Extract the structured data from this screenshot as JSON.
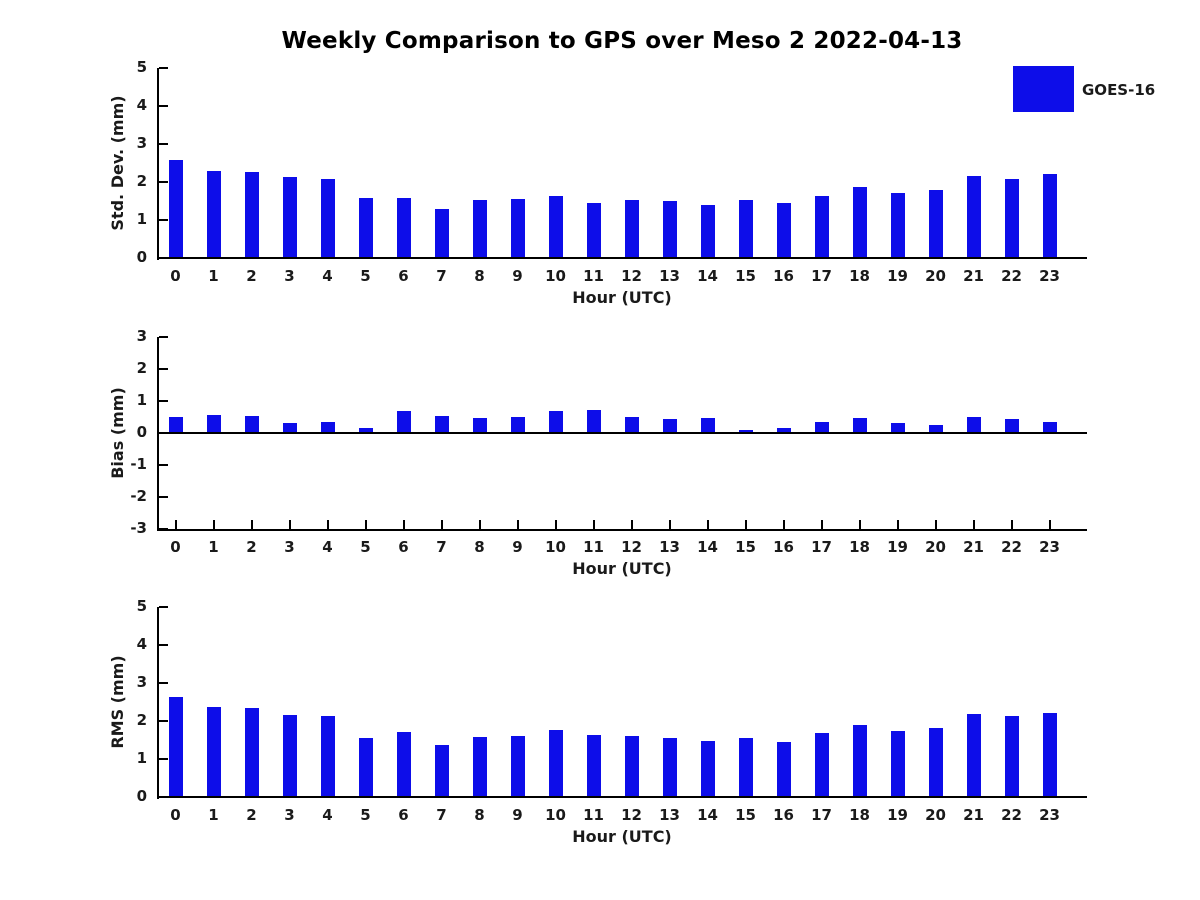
{
  "header": {
    "title": "Weekly Comparison to GPS over Meso 2 2022-04-13"
  },
  "legend": {
    "label": "GOES-16",
    "color": "#0d0de9",
    "position": "top-right"
  },
  "colors": {
    "bar": "#0d0de9",
    "axis": "#000000",
    "text": "#1a1a1a"
  },
  "chart_data": [
    {
      "type": "bar",
      "series_name": "GOES-16",
      "title": "Weekly Comparison to GPS over Meso 2 2022-04-13",
      "xlabel": "Hour (UTC)",
      "ylabel": "Std. Dev. (mm)",
      "categories": [
        "0",
        "1",
        "2",
        "3",
        "4",
        "5",
        "6",
        "7",
        "8",
        "9",
        "10",
        "11",
        "12",
        "13",
        "14",
        "15",
        "16",
        "17",
        "18",
        "19",
        "20",
        "21",
        "22",
        "23"
      ],
      "values": [
        2.58,
        2.3,
        2.27,
        2.14,
        2.09,
        1.57,
        1.57,
        1.28,
        1.52,
        1.54,
        1.62,
        1.46,
        1.53,
        1.49,
        1.4,
        1.53,
        1.44,
        1.64,
        1.86,
        1.7,
        1.8,
        2.15,
        2.09,
        2.2
      ],
      "ylim": [
        0,
        5
      ],
      "yticks": [
        0,
        1,
        2,
        3,
        4,
        5
      ],
      "grid": false,
      "legend_position": "outside-top-right"
    },
    {
      "type": "bar",
      "series_name": "GOES-16",
      "title": "",
      "xlabel": "Hour (UTC)",
      "ylabel": "Bias (mm)",
      "categories": [
        "0",
        "1",
        "2",
        "3",
        "4",
        "5",
        "6",
        "7",
        "8",
        "9",
        "10",
        "11",
        "12",
        "13",
        "14",
        "15",
        "16",
        "17",
        "18",
        "19",
        "20",
        "21",
        "22",
        "23"
      ],
      "values": [
        0.49,
        0.56,
        0.52,
        0.31,
        0.33,
        0.17,
        0.7,
        0.52,
        0.46,
        0.49,
        0.7,
        0.73,
        0.49,
        0.44,
        0.47,
        0.1,
        0.16,
        0.33,
        0.46,
        0.3,
        0.24,
        0.49,
        0.43,
        0.35
      ],
      "ylim": [
        -3,
        3
      ],
      "yticks": [
        3,
        2,
        1,
        0,
        -1,
        -2,
        -3
      ],
      "grid": false,
      "legend_position": "none"
    },
    {
      "type": "bar",
      "series_name": "GOES-16",
      "title": "",
      "xlabel": "Hour (UTC)",
      "ylabel": "RMS (mm)",
      "categories": [
        "0",
        "1",
        "2",
        "3",
        "4",
        "5",
        "6",
        "7",
        "8",
        "9",
        "10",
        "11",
        "12",
        "13",
        "14",
        "15",
        "16",
        "17",
        "18",
        "19",
        "20",
        "21",
        "22",
        "23"
      ],
      "values": [
        2.64,
        2.38,
        2.35,
        2.17,
        2.12,
        1.56,
        1.71,
        1.38,
        1.58,
        1.61,
        1.77,
        1.64,
        1.61,
        1.54,
        1.47,
        1.55,
        1.45,
        1.68,
        1.89,
        1.73,
        1.82,
        2.19,
        2.13,
        2.21
      ],
      "ylim": [
        0,
        5
      ],
      "yticks": [
        0,
        1,
        2,
        3,
        4,
        5
      ],
      "grid": false,
      "legend_position": "none"
    }
  ]
}
